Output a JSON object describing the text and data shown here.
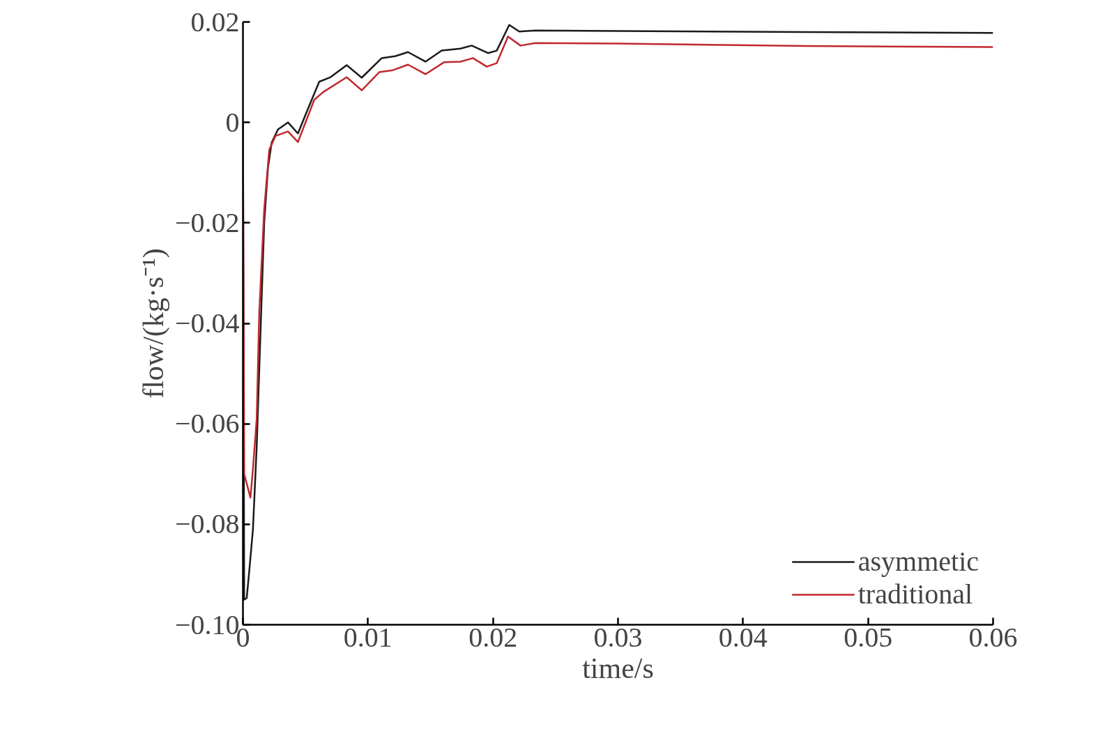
{
  "chart_data": {
    "type": "line",
    "xlabel": "time/s",
    "ylabel": "flow/(kg·s⁻¹)",
    "xlim": [
      0,
      0.06
    ],
    "ylim": [
      -0.1,
      0.02
    ],
    "xticks": [
      {
        "value": 0,
        "label": "0"
      },
      0.01,
      0.02,
      0.03,
      0.04,
      0.05,
      0.06
    ],
    "yticks": [
      {
        "value": -0.1,
        "label": "−0.10"
      },
      {
        "value": -0.08,
        "label": "−0.08"
      },
      {
        "value": -0.06,
        "label": "−0.06"
      },
      {
        "value": -0.04,
        "label": "−0.04"
      },
      {
        "value": -0.02,
        "label": "−0.02"
      },
      {
        "value": 0,
        "label": "0"
      },
      0.02
    ],
    "grid": false,
    "legend": "bottom right",
    "series": [
      {
        "name": "asymmetic",
        "color": "#1a1a1a",
        "x": [
          0,
          0.0001,
          0.0003,
          0.0005,
          0.0008,
          0.0011,
          0.0014,
          0.0017,
          0.002,
          0.0023,
          0.0028,
          0.0036,
          0.0044,
          0.0051,
          0.0061,
          0.007,
          0.0083,
          0.0095,
          0.0111,
          0.0122,
          0.0132,
          0.0146,
          0.0159,
          0.0174,
          0.0183,
          0.0196,
          0.0203,
          0.0213,
          0.0221,
          0.0234,
          0.03,
          0.045,
          0.06
        ],
        "values": [
          0.0,
          -0.095,
          -0.0947,
          -0.0894,
          -0.081,
          -0.0645,
          -0.042,
          -0.02,
          -0.009,
          -0.004,
          -0.0014,
          0.0,
          -0.0022,
          0.0021,
          0.0081,
          0.009,
          0.0114,
          0.0089,
          0.0128,
          0.0132,
          0.014,
          0.0121,
          0.0143,
          0.0147,
          0.0153,
          0.0138,
          0.0143,
          0.0194,
          0.0181,
          0.0183,
          0.0182,
          0.018,
          0.0178
        ]
      },
      {
        "name": "traditional",
        "color": "#c0282d",
        "x": [
          0,
          0.0001,
          0.0006,
          0.0008,
          0.0011,
          0.0013,
          0.0017,
          0.0021,
          0.0026,
          0.0036,
          0.0044,
          0.0057,
          0.0064,
          0.0083,
          0.0095,
          0.0109,
          0.012,
          0.0132,
          0.0146,
          0.0161,
          0.0174,
          0.0184,
          0.0195,
          0.0203,
          0.0212,
          0.0222,
          0.0234,
          0.03,
          0.045,
          0.06
        ],
        "values": [
          0.0,
          -0.07,
          -0.0747,
          -0.069,
          -0.059,
          -0.038,
          -0.0173,
          -0.0055,
          -0.0027,
          -0.0018,
          -0.0039,
          0.0045,
          0.006,
          0.009,
          0.0064,
          0.01,
          0.0104,
          0.0115,
          0.0096,
          0.012,
          0.0121,
          0.0128,
          0.0111,
          0.0118,
          0.0171,
          0.0153,
          0.0158,
          0.0157,
          0.0152,
          0.015
        ]
      }
    ]
  }
}
